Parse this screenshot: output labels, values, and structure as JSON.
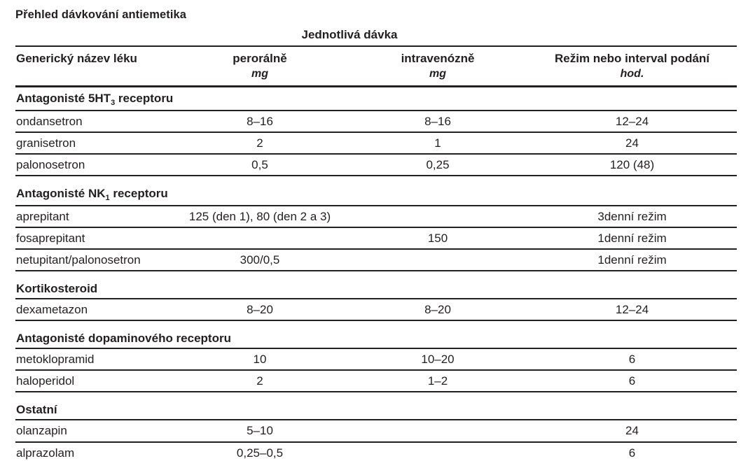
{
  "title": "Přehled dávkování antiemetika",
  "table": {
    "spanner": "Jednotlivá dávka",
    "columns": [
      {
        "label": "Generický název léku",
        "unit": ""
      },
      {
        "label": "perorálně",
        "unit": "mg"
      },
      {
        "label": "intravenózně",
        "unit": "mg"
      },
      {
        "label": "Režim nebo interval podání",
        "unit": "hod."
      }
    ],
    "sections": [
      {
        "title_segments": [
          {
            "text": "Antagonisté 5HT"
          },
          {
            "text": "3",
            "subscript": true
          },
          {
            "text": " receptoru"
          }
        ],
        "rows": [
          {
            "drug": "ondansetron",
            "oral": "8–16",
            "iv": "8–16",
            "interval": "12–24"
          },
          {
            "drug": "granisetron",
            "oral": "2",
            "iv": "1",
            "interval": "24"
          },
          {
            "drug": "palonosetron",
            "oral": "0,5",
            "iv": "0,25",
            "interval": "120 (48)"
          }
        ]
      },
      {
        "title_segments": [
          {
            "text": "Antagonisté NK"
          },
          {
            "text": "1",
            "subscript": true
          },
          {
            "text": " receptoru"
          }
        ],
        "rows": [
          {
            "drug": "aprepitant",
            "oral": "125 (den 1), 80 (den 2 a 3)",
            "iv": "",
            "interval": "3denní režim"
          },
          {
            "drug": "fosaprepitant",
            "oral": "",
            "iv": "150",
            "interval": "1denní režim"
          },
          {
            "drug": "netupitant/palonosetron",
            "oral": "300/0,5",
            "iv": "",
            "interval": "1denní režim"
          }
        ]
      },
      {
        "title_segments": [
          {
            "text": "Kortikosteroid"
          }
        ],
        "rows": [
          {
            "drug": "dexametazon",
            "oral": "8–20",
            "iv": "8–20",
            "interval": "12–24"
          }
        ]
      },
      {
        "title_segments": [
          {
            "text": "Antagonisté dopaminového receptoru"
          }
        ],
        "rows": [
          {
            "drug": "metoklopramid",
            "oral": "10",
            "iv": "10–20",
            "interval": "6"
          },
          {
            "drug": "haloperidol",
            "oral": "2",
            "iv": "1–2",
            "interval": "6"
          }
        ]
      },
      {
        "title_segments": [
          {
            "text": "Ostatní"
          }
        ],
        "rows": [
          {
            "drug": "olanzapin",
            "oral": "5–10",
            "iv": "",
            "interval": "24"
          },
          {
            "drug": "alprazolam",
            "oral": "0,25–0,5",
            "iv": "",
            "interval": "6"
          }
        ]
      }
    ]
  }
}
